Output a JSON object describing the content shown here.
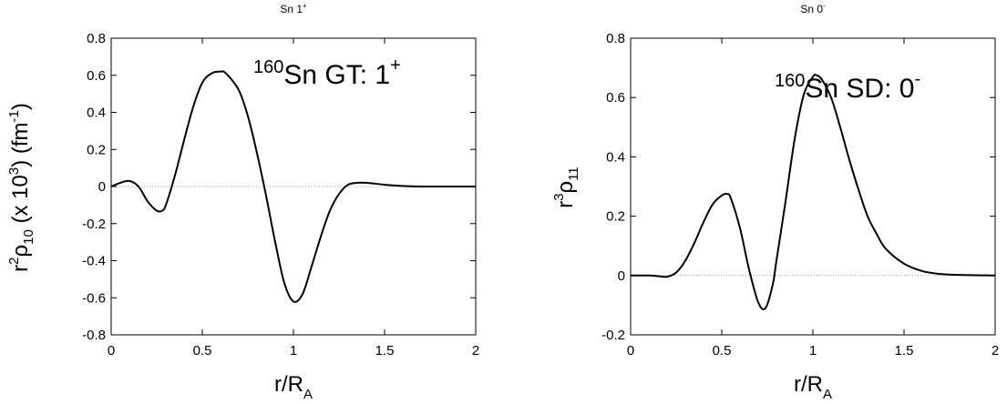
{
  "chart_data": [
    {
      "type": "line",
      "title_base": "Sn 1",
      "title_sup": "+",
      "xlabel_base": "r/R",
      "xlabel_sub": "A",
      "ylabel_parts": {
        "r": "r",
        "r_sup": "2",
        "rho": "ρ",
        "rho_sub": "10",
        "paren_open": " (x 10",
        "exp_sup": "3",
        "paren_close": ") (fm",
        "unit_sup": "-1",
        "tail": ")"
      },
      "annotation_parts": {
        "pre_sup": "160",
        "main": "Sn GT: 1",
        "post_sup": "+"
      },
      "xlim": [
        0,
        2
      ],
      "ylim": [
        -0.8,
        0.8
      ],
      "xticks": [
        0,
        0.5,
        1,
        1.5,
        2
      ],
      "yticks": [
        -0.8,
        -0.6,
        -0.4,
        -0.2,
        0,
        0.2,
        0.4,
        0.6,
        0.8
      ],
      "xtick_labels": [
        "0",
        "0.5",
        "1",
        "1.5",
        "2"
      ],
      "ytick_labels": [
        "-0.8",
        "-0.6",
        "-0.4",
        "-0.2",
        "0",
        "0.2",
        "0.4",
        "0.6",
        "0.8"
      ],
      "zero_line": true,
      "series": [
        {
          "color": "#000000",
          "x": [
            0,
            0.05,
            0.1,
            0.15,
            0.2,
            0.25,
            0.28,
            0.3,
            0.35,
            0.4,
            0.45,
            0.5,
            0.55,
            0.6,
            0.63,
            0.7,
            0.75,
            0.8,
            0.85,
            0.9,
            0.95,
            1.0,
            1.05,
            1.1,
            1.15,
            1.2,
            1.25,
            1.3,
            1.35,
            1.4,
            1.5,
            1.6,
            1.7,
            1.8,
            2.0
          ],
          "y": [
            0,
            0.02,
            0.03,
            0.0,
            -0.08,
            -0.13,
            -0.13,
            -0.1,
            0.06,
            0.25,
            0.43,
            0.56,
            0.61,
            0.62,
            0.61,
            0.52,
            0.38,
            0.18,
            -0.05,
            -0.3,
            -0.52,
            -0.62,
            -0.58,
            -0.43,
            -0.27,
            -0.13,
            -0.04,
            0.01,
            0.02,
            0.02,
            0.01,
            0.003,
            0.0,
            0.0,
            0.0
          ]
        }
      ]
    },
    {
      "type": "line",
      "title_base": "Sn 0",
      "title_sup": "-",
      "xlabel_base": "r/R",
      "xlabel_sub": "A",
      "ylabel_parts": {
        "r": "r",
        "r_sup": "3",
        "rho": "ρ",
        "rho_sub": "11"
      },
      "annotation_parts": {
        "pre_sup": "160",
        "main": "Sn SD: 0",
        "post_sup": "-"
      },
      "xlim": [
        0,
        2
      ],
      "ylim": [
        -0.2,
        0.8
      ],
      "xticks": [
        0,
        0.5,
        1,
        1.5,
        2
      ],
      "yticks": [
        -0.2,
        0,
        0.2,
        0.4,
        0.6,
        0.8
      ],
      "xtick_labels": [
        "0",
        "0.5",
        "1",
        "1.5",
        "2"
      ],
      "ytick_labels": [
        "-0.2",
        "0",
        "0.2",
        "0.4",
        "0.6",
        "0.8"
      ],
      "zero_line": true,
      "series": [
        {
          "color": "#000000",
          "x": [
            0,
            0.1,
            0.15,
            0.2,
            0.25,
            0.3,
            0.35,
            0.4,
            0.45,
            0.5,
            0.53,
            0.55,
            0.6,
            0.65,
            0.7,
            0.74,
            0.78,
            0.8,
            0.85,
            0.9,
            0.95,
            1.0,
            1.02,
            1.05,
            1.1,
            1.15,
            1.2,
            1.25,
            1.3,
            1.35,
            1.4,
            1.5,
            1.6,
            1.7,
            1.8,
            2.0
          ],
          "y": [
            0,
            0,
            -0.002,
            -0.004,
            0.01,
            0.05,
            0.11,
            0.18,
            0.24,
            0.27,
            0.275,
            0.26,
            0.16,
            0.02,
            -0.09,
            -0.11,
            -0.03,
            0.05,
            0.25,
            0.46,
            0.61,
            0.67,
            0.675,
            0.66,
            0.6,
            0.5,
            0.39,
            0.29,
            0.2,
            0.14,
            0.09,
            0.04,
            0.015,
            0.005,
            0.002,
            0.0
          ]
        }
      ]
    }
  ]
}
